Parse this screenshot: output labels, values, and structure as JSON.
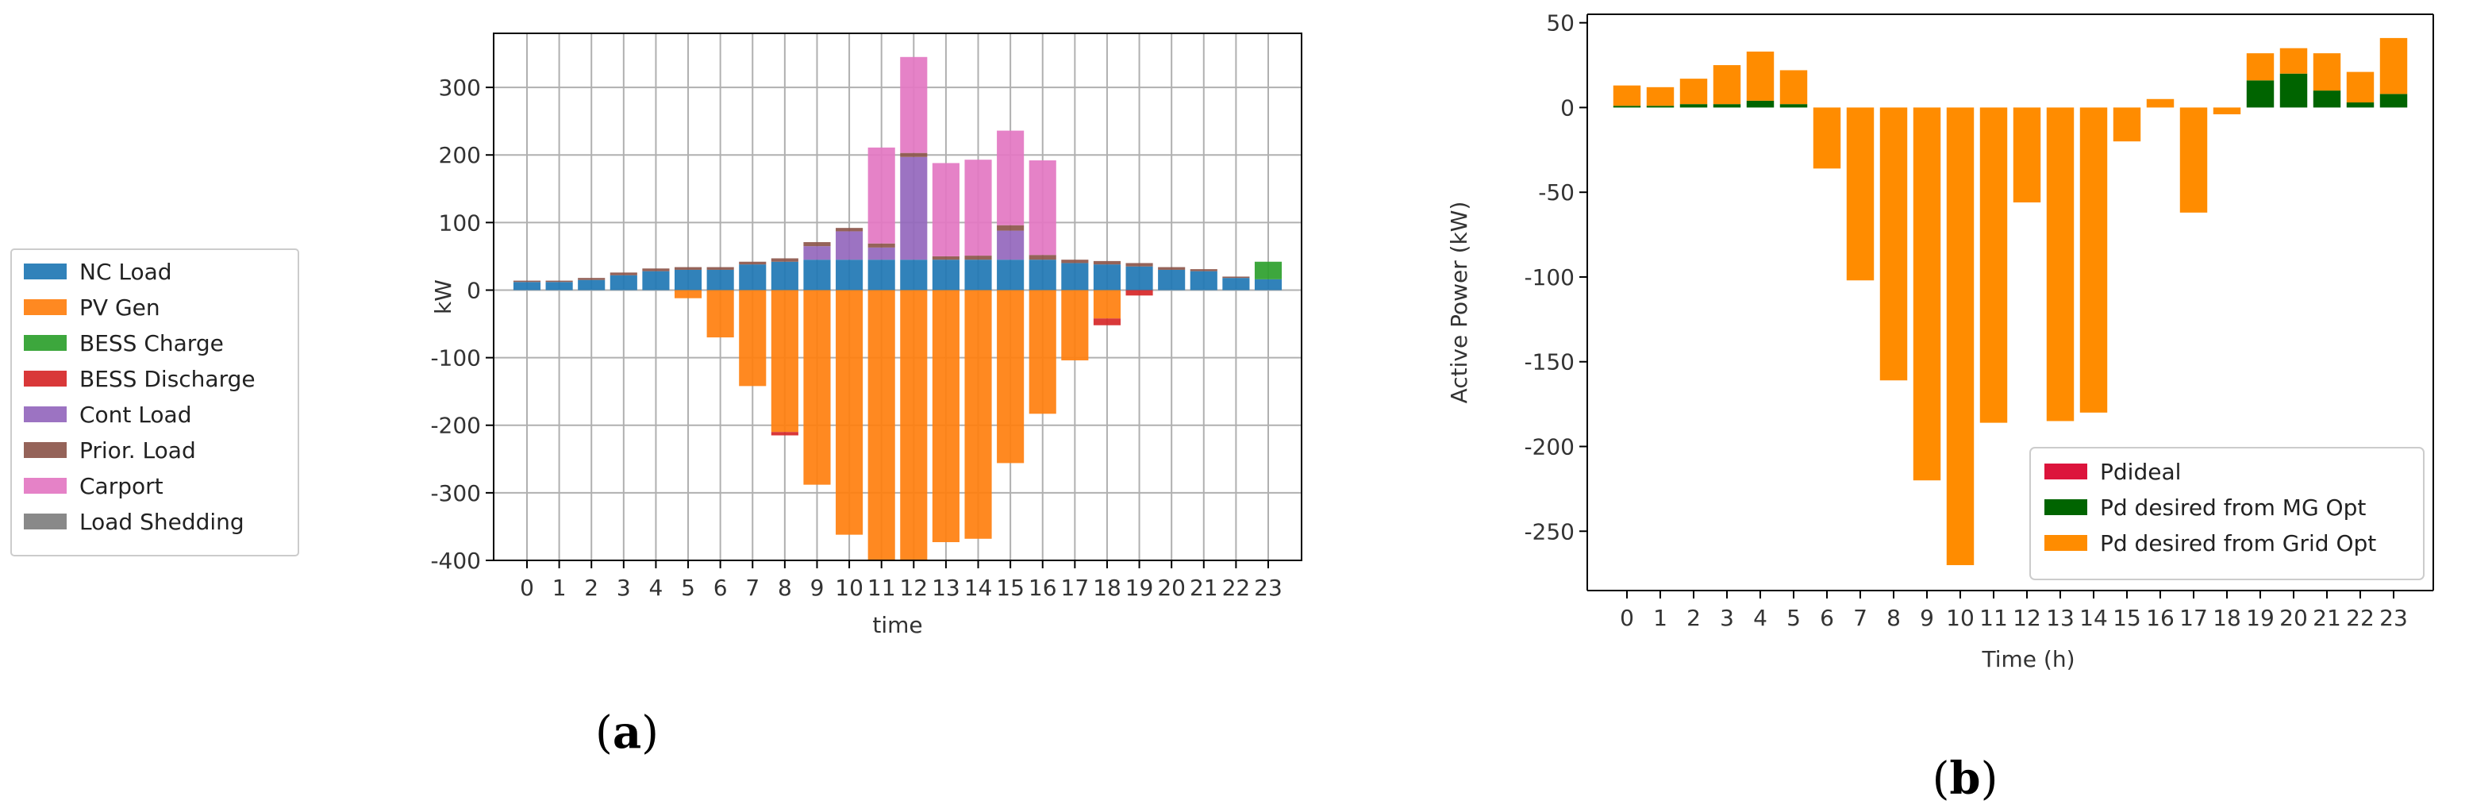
{
  "chart_data": [
    {
      "type": "bar",
      "stacked": true,
      "panel_label": {
        "open": "(",
        "letter": "a",
        "close": ")"
      },
      "title": "",
      "xlabel": "time",
      "ylabel": "kW",
      "ylim": [
        -400,
        380
      ],
      "yticks": [
        -400,
        -300,
        -200,
        -100,
        0,
        100,
        200,
        300
      ],
      "grid": true,
      "legend_position": "outside-left",
      "categories": [
        "0",
        "1",
        "2",
        "3",
        "4",
        "5",
        "6",
        "7",
        "8",
        "9",
        "10",
        "11",
        "12",
        "13",
        "14",
        "15",
        "16",
        "17",
        "18",
        "19",
        "20",
        "21",
        "22",
        "23"
      ],
      "series": [
        {
          "name": "NC Load",
          "color": "#1f77b4",
          "values": [
            12,
            12,
            15,
            22,
            28,
            30,
            30,
            38,
            42,
            45,
            45,
            45,
            45,
            45,
            45,
            45,
            45,
            40,
            38,
            35,
            30,
            28,
            18,
            16
          ]
        },
        {
          "name": "PV Gen",
          "color": "#ff7f0e",
          "values": [
            0,
            0,
            0,
            0,
            0,
            -12,
            -70,
            -142,
            -210,
            -288,
            -362,
            -400,
            -400,
            -373,
            -368,
            -256,
            -183,
            -104,
            -42,
            0,
            0,
            0,
            0,
            0
          ]
        },
        {
          "name": "BESS Charge",
          "color": "#2ca02c",
          "values": [
            0,
            0,
            0,
            0,
            0,
            0,
            0,
            0,
            0,
            0,
            0,
            0,
            0,
            0,
            0,
            0,
            0,
            0,
            0,
            0,
            0,
            0,
            0,
            26
          ]
        },
        {
          "name": "BESS Discharge",
          "color": "#d62728",
          "values": [
            0,
            0,
            0,
            0,
            0,
            0,
            0,
            0,
            -5,
            0,
            0,
            0,
            0,
            0,
            0,
            0,
            0,
            0,
            -10,
            -8,
            0,
            0,
            0,
            0
          ]
        },
        {
          "name": "Cont Load",
          "color": "#9467bd",
          "values": [
            0,
            0,
            0,
            0,
            0,
            0,
            0,
            0,
            0,
            20,
            42,
            18,
            152,
            0,
            0,
            43,
            0,
            0,
            0,
            0,
            0,
            0,
            0,
            0
          ]
        },
        {
          "name": "Prior. Load",
          "color": "#8c564b",
          "values": [
            2,
            2,
            3,
            4,
            4,
            4,
            4,
            4,
            5,
            6,
            5,
            6,
            6,
            5,
            6,
            8,
            7,
            5,
            5,
            5,
            4,
            3,
            2,
            0
          ]
        },
        {
          "name": "Carport",
          "color": "#e377c2",
          "values": [
            0,
            0,
            0,
            0,
            0,
            0,
            0,
            0,
            0,
            0,
            0,
            142,
            142,
            138,
            142,
            140,
            140,
            0,
            0,
            0,
            0,
            0,
            0,
            0
          ]
        },
        {
          "name": "Load Shedding",
          "color": "#7f7f7f",
          "values": [
            0,
            0,
            0,
            0,
            0,
            0,
            0,
            0,
            0,
            0,
            0,
            0,
            0,
            0,
            0,
            0,
            0,
            0,
            0,
            0,
            0,
            0,
            0,
            0
          ]
        }
      ]
    },
    {
      "type": "bar",
      "stacked": true,
      "panel_label": {
        "open": "(",
        "letter": "b",
        "close": ")"
      },
      "title": "",
      "xlabel": "Time (h)",
      "ylabel": "Active Power (kW)",
      "ylim": [
        -285,
        55
      ],
      "yticks": [
        -250,
        -200,
        -150,
        -100,
        -50,
        0,
        50
      ],
      "grid": false,
      "legend_position": "lower-right",
      "categories": [
        "0",
        "1",
        "2",
        "3",
        "4",
        "5",
        "6",
        "7",
        "8",
        "9",
        "10",
        "11",
        "12",
        "13",
        "14",
        "15",
        "16",
        "17",
        "18",
        "19",
        "20",
        "21",
        "22",
        "23"
      ],
      "series": [
        {
          "name": "Pdideal",
          "color": "#dc143c",
          "values": [
            0,
            0,
            0,
            0,
            0,
            0,
            0,
            0,
            0,
            0,
            0,
            0,
            0,
            0,
            0,
            0,
            0,
            0,
            0,
            0,
            0,
            0,
            0,
            0
          ]
        },
        {
          "name": "Pd desired from MG Opt",
          "color": "#006400",
          "values": [
            1,
            1,
            2,
            2,
            4,
            2,
            0,
            0,
            0,
            0,
            0,
            0,
            0,
            0,
            0,
            0,
            0,
            0,
            0,
            16,
            20,
            10,
            3,
            8
          ]
        },
        {
          "name": "Pd desired from Grid Opt",
          "color": "#ff8c00",
          "values": [
            12,
            11,
            15,
            23,
            29,
            20,
            -36,
            -102,
            -161,
            -220,
            -270,
            -186,
            -56,
            -185,
            -180,
            -20,
            5,
            -62,
            -4,
            16,
            15,
            22,
            18,
            33
          ]
        }
      ]
    }
  ]
}
